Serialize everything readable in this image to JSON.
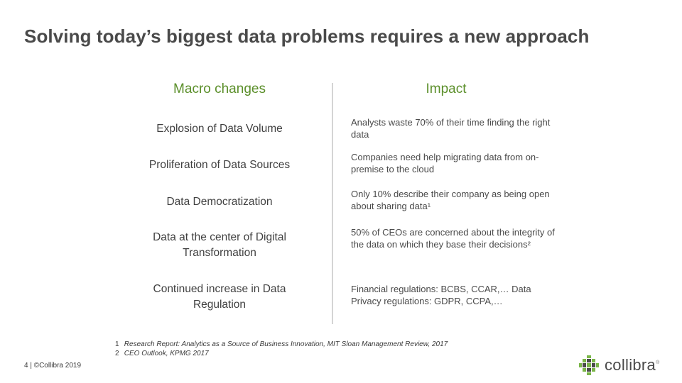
{
  "slide": {
    "title": "Solving today’s biggest data problems requires a new approach"
  },
  "columns": {
    "macro_heading": "Macro changes",
    "impact_heading": "Impact"
  },
  "rows": [
    {
      "macro": "Explosion of Data Volume",
      "impact": "Analysts waste 70% of their time finding the right data"
    },
    {
      "macro": "Proliferation of Data Sources",
      "impact": "Companies need help migrating data from on-premise to the cloud"
    },
    {
      "macro": "Data Democratization",
      "impact": "Only 10% describe their company as being open about sharing data¹"
    },
    {
      "macro": "Data at the center of Digital Transformation",
      "impact": "50% of CEOs are concerned about the integrity of the data on which they base their decisions²"
    },
    {
      "macro": "Continued increase in Data Regulation",
      "impact": "Financial regulations: BCBS, CCAR,… Data Privacy regulations: GDPR, CCPA,…"
    }
  ],
  "footnotes": [
    {
      "num": "1",
      "text": "Research Report: Analytics as a Source of Business Innovation, MIT Sloan Management Review, 2017"
    },
    {
      "num": "2",
      "text": "CEO Outlook, KPMG 2017"
    }
  ],
  "footer": {
    "page_info": "4 | ©Collibra 2019"
  },
  "logo": {
    "wordmark": "collibra",
    "icon": "collibra-grid-icon",
    "colors": {
      "green": "#7ab648",
      "dark": "#4a4a4a"
    }
  },
  "colors": {
    "heading_green": "#5b8f2a",
    "title_gray": "#4a4a4a",
    "divider": "#d4d4d4"
  }
}
